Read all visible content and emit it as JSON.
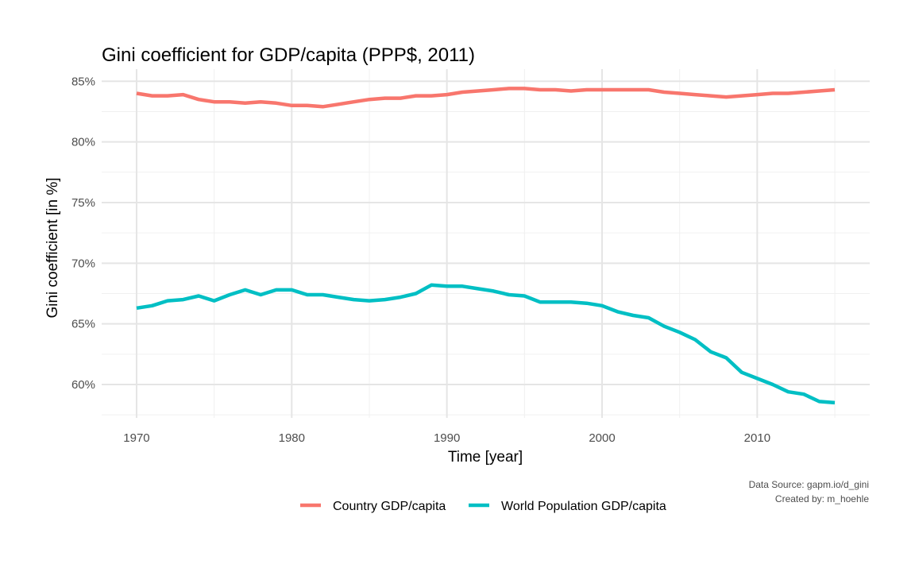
{
  "chart_data": {
    "type": "line",
    "title": "Gini coefficient for GDP/capita (PPP$, 2011)",
    "xlabel": "Time [year]",
    "ylabel": "Gini coefficient [in %]",
    "xlim": [
      1967.75,
      1017.25
    ],
    "ylim": [
      57.25,
      86.0
    ],
    "x_ticks": [
      1970,
      1980,
      1990,
      2000,
      2010
    ],
    "x_tick_labels": [
      "1970",
      "1980",
      "1990",
      "2000",
      "2010"
    ],
    "y_ticks": [
      60,
      65,
      70,
      75,
      80,
      85
    ],
    "y_tick_labels": [
      "60%",
      "65%",
      "70%",
      "75%",
      "80%",
      "85%"
    ],
    "grid": true,
    "legend_position": "bottom",
    "x": [
      1970,
      1971,
      1972,
      1973,
      1974,
      1975,
      1976,
      1977,
      1978,
      1979,
      1980,
      1981,
      1982,
      1983,
      1984,
      1985,
      1986,
      1987,
      1988,
      1989,
      1990,
      1991,
      1992,
      1993,
      1994,
      1995,
      1996,
      1997,
      1998,
      1999,
      2000,
      2001,
      2002,
      2003,
      2004,
      2005,
      2006,
      2007,
      2008,
      2009,
      2010,
      2011,
      2012,
      2013,
      2014,
      2015
    ],
    "series": [
      {
        "name": "Country GDP/capita",
        "color": "#F8766D",
        "values": [
          84.0,
          83.8,
          83.8,
          83.9,
          83.5,
          83.3,
          83.3,
          83.2,
          83.3,
          83.2,
          83.0,
          83.0,
          82.9,
          83.1,
          83.3,
          83.5,
          83.6,
          83.6,
          83.8,
          83.8,
          83.9,
          84.1,
          84.2,
          84.3,
          84.4,
          84.4,
          84.3,
          84.3,
          84.2,
          84.3,
          84.3,
          84.3,
          84.3,
          84.3,
          84.1,
          84.0,
          83.9,
          83.8,
          83.7,
          83.8,
          83.9,
          84.0,
          84.0,
          84.1,
          84.2,
          84.3
        ]
      },
      {
        "name": "World Population GDP/capita",
        "color": "#00BFC4",
        "values": [
          66.3,
          66.5,
          66.9,
          67.0,
          67.3,
          66.9,
          67.4,
          67.8,
          67.4,
          67.8,
          67.8,
          67.4,
          67.4,
          67.2,
          67.0,
          66.9,
          67.0,
          67.2,
          67.5,
          68.2,
          68.1,
          68.1,
          67.9,
          67.7,
          67.4,
          67.3,
          66.8,
          66.8,
          66.8,
          66.7,
          66.5,
          66.0,
          65.7,
          65.5,
          64.8,
          64.3,
          63.7,
          62.7,
          62.2,
          61.0,
          60.5,
          60.0,
          59.4,
          59.2,
          58.6,
          58.5
        ]
      }
    ],
    "caption": [
      "Data Source: gapm.io/d_gini",
      "Created by: m_hoehle"
    ]
  }
}
